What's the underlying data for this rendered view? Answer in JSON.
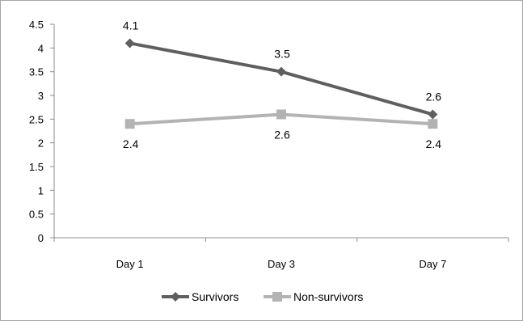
{
  "chart_data": {
    "type": "line",
    "categories": [
      "Day 1",
      "Day 3",
      "Day 7"
    ],
    "series": [
      {
        "name": "Survivors",
        "values": [
          4.1,
          3.5,
          2.6
        ],
        "color": "#5f5f5f",
        "marker": "diamond",
        "labels": [
          "4.1",
          "3.5",
          "2.6"
        ],
        "label_position": "above"
      },
      {
        "name": "Non-survivors",
        "values": [
          2.4,
          2.6,
          2.4
        ],
        "color": "#b3b3b3",
        "marker": "square",
        "labels": [
          "2.4",
          "2.6",
          "2.4"
        ],
        "label_position": "below"
      }
    ],
    "ylim": [
      0,
      4.5
    ],
    "yticks": [
      "0",
      "0.5",
      "1",
      "1.5",
      "2",
      "2.5",
      "3",
      "3.5",
      "4",
      "4.5"
    ],
    "title": "",
    "xlabel": "",
    "ylabel": "",
    "grid": false,
    "legend_position": "bottom"
  }
}
